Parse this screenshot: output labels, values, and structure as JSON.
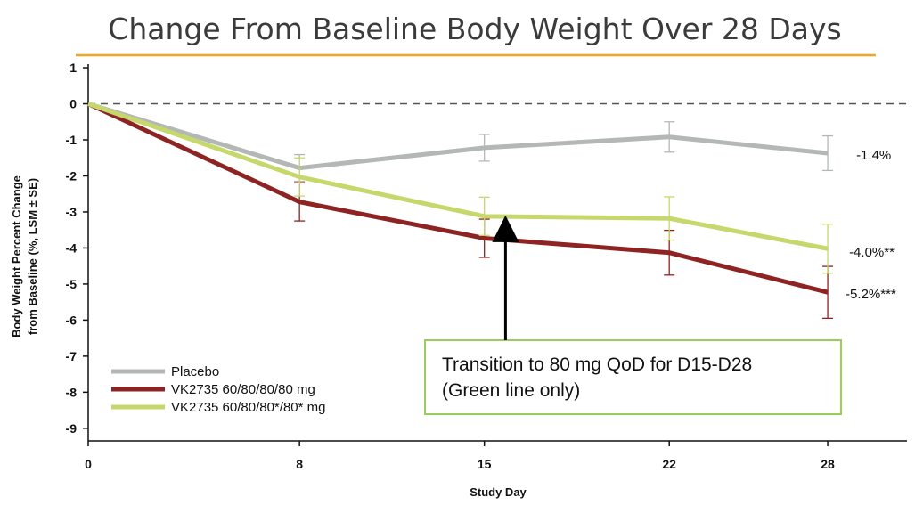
{
  "chart_data": {
    "type": "line",
    "title": "Change From Baseline Body Weight Over 28 Days",
    "xlabel": "Study Day",
    "ylabel_line1": "Body Weight Percent Change",
    "ylabel_line2": "from Baseline (%, LSM ± SE)",
    "x_ticks": [
      0,
      8,
      15,
      22,
      28
    ],
    "y_ticks": [
      1,
      0,
      -1,
      -2,
      -3,
      -4,
      -5,
      -6,
      -7,
      -8,
      -9
    ],
    "xlim": [
      0,
      31
    ],
    "ylim": [
      -9.35,
      1.1
    ],
    "reference_line_y": 0,
    "grid": false,
    "legend_position": "bottom-left",
    "series": [
      {
        "name": "Placebo",
        "color": "#b3b8b7",
        "x": [
          0,
          8,
          15,
          22,
          28
        ],
        "y": [
          0,
          -1.78,
          -1.22,
          -0.92,
          -1.37
        ],
        "se": [
          0,
          0.37,
          0.37,
          0.42,
          0.48
        ],
        "end_label": "-1.4%"
      },
      {
        "name": "VK2735 60/80/80/80 mg",
        "color": "#8e2323",
        "x": [
          0,
          8,
          15,
          22,
          28
        ],
        "y": [
          0,
          -2.72,
          -3.73,
          -4.13,
          -5.23
        ],
        "se": [
          0,
          0.53,
          0.53,
          0.62,
          0.72
        ],
        "end_label": "-5.2%***"
      },
      {
        "name": "VK2735 60/80/80*/80* mg",
        "color": "#c6d86b",
        "x": [
          0,
          8,
          15,
          22,
          28
        ],
        "y": [
          0,
          -2.03,
          -3.12,
          -3.18,
          -4.02
        ],
        "se": [
          0,
          0.53,
          0.53,
          0.6,
          0.68
        ],
        "end_label": "-4.0%**"
      }
    ],
    "annotation": {
      "line1": "Transition to 80 mg QoD for D15-D28",
      "line2": "(Green line only)",
      "arrow_x": 15.8,
      "arrow_target_y": -3.12,
      "border_color": "#9acd5c"
    },
    "title_underline_color": "#f3a424"
  }
}
